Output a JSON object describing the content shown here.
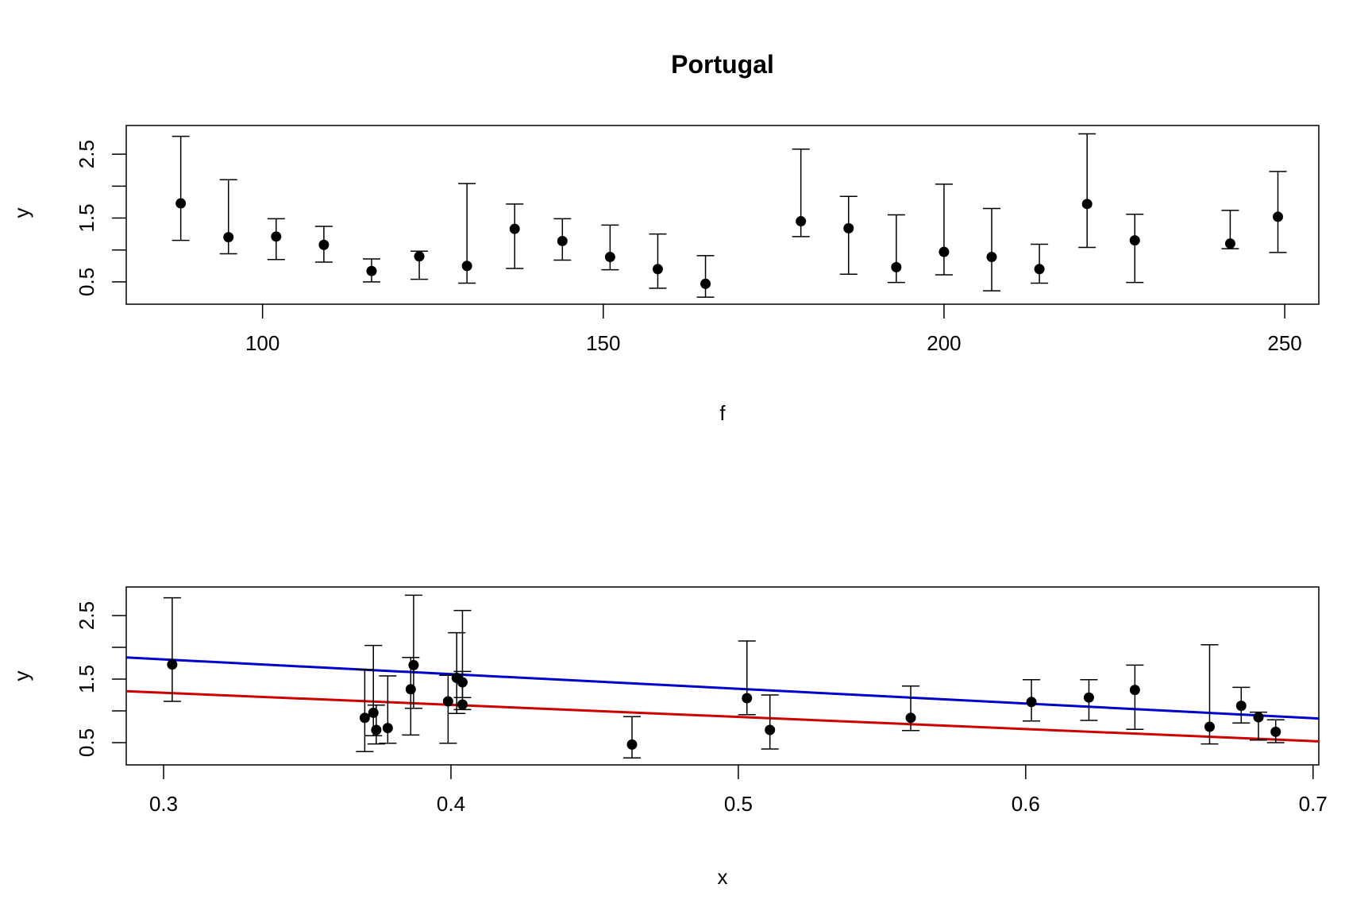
{
  "title": "Portugal",
  "colors": {
    "fit_upper": "#0000CD",
    "fit_lower": "#CD0000",
    "points": "#000000"
  },
  "chart_data": [
    {
      "type": "scatter",
      "xlabel": "f",
      "ylabel": "y",
      "xlim": [
        80,
        255
      ],
      "ylim": [
        0.15,
        2.95
      ],
      "xticks": [
        "100",
        "150",
        "200",
        "250"
      ],
      "yticks": [
        "0.5",
        "1.5",
        "2.5"
      ],
      "points": [
        {
          "x": 88,
          "y": 1.73,
          "lo": 1.15,
          "hi": 2.78
        },
        {
          "x": 95,
          "y": 1.2,
          "lo": 0.94,
          "hi": 2.1
        },
        {
          "x": 102,
          "y": 1.21,
          "lo": 0.85,
          "hi": 1.49
        },
        {
          "x": 109,
          "y": 1.08,
          "lo": 0.81,
          "hi": 1.37
        },
        {
          "x": 116,
          "y": 0.67,
          "lo": 0.5,
          "hi": 0.86
        },
        {
          "x": 123,
          "y": 0.9,
          "lo": 0.54,
          "hi": 0.98
        },
        {
          "x": 130,
          "y": 0.75,
          "lo": 0.48,
          "hi": 2.04
        },
        {
          "x": 137,
          "y": 1.33,
          "lo": 0.71,
          "hi": 1.72
        },
        {
          "x": 144,
          "y": 1.14,
          "lo": 0.84,
          "hi": 1.49
        },
        {
          "x": 151,
          "y": 0.89,
          "lo": 0.69,
          "hi": 1.39
        },
        {
          "x": 158,
          "y": 0.7,
          "lo": 0.4,
          "hi": 1.25
        },
        {
          "x": 165,
          "y": 0.47,
          "lo": 0.26,
          "hi": 0.91
        },
        {
          "x": 179,
          "y": 1.45,
          "lo": 1.21,
          "hi": 2.58
        },
        {
          "x": 186,
          "y": 1.34,
          "lo": 0.62,
          "hi": 1.84
        },
        {
          "x": 193,
          "y": 0.73,
          "lo": 0.49,
          "hi": 1.55
        },
        {
          "x": 200,
          "y": 0.97,
          "lo": 0.61,
          "hi": 2.03
        },
        {
          "x": 207,
          "y": 0.89,
          "lo": 0.36,
          "hi": 1.65
        },
        {
          "x": 214,
          "y": 0.7,
          "lo": 0.48,
          "hi": 1.09
        },
        {
          "x": 221,
          "y": 1.72,
          "lo": 1.04,
          "hi": 2.82
        },
        {
          "x": 228,
          "y": 1.15,
          "lo": 0.49,
          "hi": 1.56
        },
        {
          "x": 242,
          "y": 1.1,
          "lo": 1.02,
          "hi": 1.62
        },
        {
          "x": 249,
          "y": 1.52,
          "lo": 0.96,
          "hi": 2.23
        }
      ]
    },
    {
      "type": "scatter",
      "xlabel": "x",
      "ylabel": "y",
      "xlim": [
        0.287,
        0.702
      ],
      "ylim": [
        0.15,
        2.95
      ],
      "xticks": [
        "0.3",
        "0.4",
        "0.5",
        "0.6",
        "0.7"
      ],
      "yticks": [
        "0.5",
        "1.5",
        "2.5"
      ],
      "points": [
        {
          "x": 0.303,
          "y": 1.73,
          "lo": 1.15,
          "hi": 2.78
        },
        {
          "x": 0.37,
          "y": 0.89,
          "lo": 0.36,
          "hi": 1.65
        },
        {
          "x": 0.373,
          "y": 0.97,
          "lo": 0.61,
          "hi": 2.03
        },
        {
          "x": 0.374,
          "y": 0.7,
          "lo": 0.48,
          "hi": 1.09
        },
        {
          "x": 0.378,
          "y": 0.73,
          "lo": 0.49,
          "hi": 1.55
        },
        {
          "x": 0.386,
          "y": 1.34,
          "lo": 0.62,
          "hi": 1.84
        },
        {
          "x": 0.387,
          "y": 1.72,
          "lo": 1.04,
          "hi": 2.82
        },
        {
          "x": 0.399,
          "y": 1.15,
          "lo": 0.49,
          "hi": 1.56
        },
        {
          "x": 0.402,
          "y": 1.52,
          "lo": 0.96,
          "hi": 2.23
        },
        {
          "x": 0.404,
          "y": 1.45,
          "lo": 1.21,
          "hi": 2.58
        },
        {
          "x": 0.404,
          "y": 1.1,
          "lo": 1.02,
          "hi": 1.62
        },
        {
          "x": 0.463,
          "y": 0.47,
          "lo": 0.26,
          "hi": 0.91
        },
        {
          "x": 0.503,
          "y": 1.2,
          "lo": 0.94,
          "hi": 2.1
        },
        {
          "x": 0.511,
          "y": 0.7,
          "lo": 0.4,
          "hi": 1.25
        },
        {
          "x": 0.56,
          "y": 0.89,
          "lo": 0.69,
          "hi": 1.39
        },
        {
          "x": 0.602,
          "y": 1.14,
          "lo": 0.84,
          "hi": 1.49
        },
        {
          "x": 0.622,
          "y": 1.21,
          "lo": 0.85,
          "hi": 1.49
        },
        {
          "x": 0.638,
          "y": 1.33,
          "lo": 0.71,
          "hi": 1.72
        },
        {
          "x": 0.664,
          "y": 0.75,
          "lo": 0.48,
          "hi": 2.04
        },
        {
          "x": 0.675,
          "y": 1.08,
          "lo": 0.81,
          "hi": 1.37
        },
        {
          "x": 0.681,
          "y": 0.9,
          "lo": 0.54,
          "hi": 0.98
        },
        {
          "x": 0.687,
          "y": 0.67,
          "lo": 0.5,
          "hi": 0.86
        }
      ],
      "lines": [
        {
          "color": "#0000CD",
          "x": [
            0.287,
            0.702
          ],
          "y": [
            1.84,
            0.88
          ]
        },
        {
          "color": "#CD0000",
          "x": [
            0.287,
            0.702
          ],
          "y": [
            1.31,
            0.52
          ]
        }
      ]
    }
  ]
}
